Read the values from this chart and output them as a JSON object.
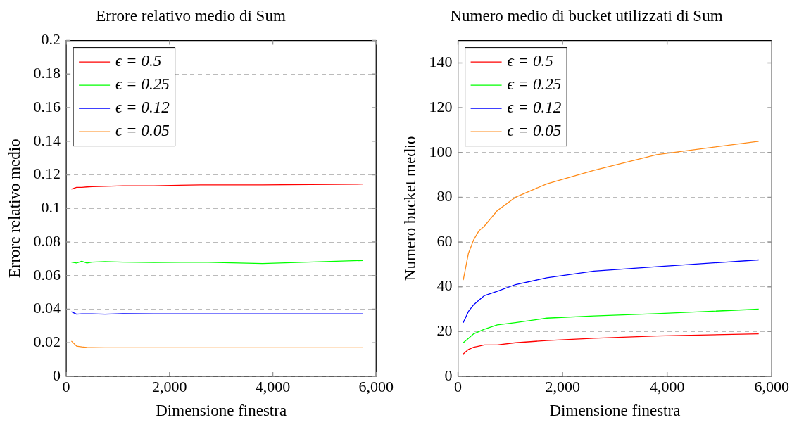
{
  "chart_data": [
    {
      "type": "line",
      "title": "Errore relativo medio di Sum",
      "xlabel": "Dimensione finestra",
      "ylabel": "Errore relativo medio",
      "x": [
        100,
        200,
        300,
        400,
        500,
        750,
        1100,
        1700,
        2600,
        3800,
        5750
      ],
      "xlim": [
        0,
        6000
      ],
      "xticks": [
        0,
        {
          "value": 2000,
          "label": "2,000"
        },
        {
          "value": 4000,
          "label": "4,000"
        },
        {
          "value": 6000,
          "label": "6,000"
        }
      ],
      "ylim": [
        0,
        0.2
      ],
      "yticks": [
        0,
        0.02,
        0.04,
        0.06,
        0.08,
        0.1,
        0.12,
        0.14,
        0.16,
        0.18,
        0.2
      ],
      "grid": "y",
      "legend": "top left",
      "marker": "none",
      "series": [
        {
          "name": "ϵ = 0.5",
          "color": "#ff0000",
          "values": [
            0.1115,
            0.1125,
            0.1125,
            0.1128,
            0.113,
            0.1132,
            0.1135,
            0.1135,
            0.114,
            0.114,
            0.1145
          ]
        },
        {
          "name": "ϵ = 0.25",
          "color": "#00ff00",
          "values": [
            0.068,
            0.0675,
            0.0685,
            0.0675,
            0.068,
            0.0683,
            0.068,
            0.0678,
            0.068,
            0.0672,
            0.069
          ]
        },
        {
          "name": "ϵ = 0.12",
          "color": "#0000ff",
          "values": [
            0.0385,
            0.037,
            0.0372,
            0.0372,
            0.0372,
            0.037,
            0.0373,
            0.0372,
            0.0372,
            0.0372,
            0.0372
          ]
        },
        {
          "name": "ϵ = 0.05",
          "color": "#ff8c1a",
          "values": [
            0.021,
            0.018,
            0.0175,
            0.0172,
            0.0171,
            0.017,
            0.017,
            0.017,
            0.017,
            0.017,
            0.017
          ]
        }
      ]
    },
    {
      "type": "line",
      "title": "Numero medio di bucket utilizzati di Sum",
      "xlabel": "Dimensione finestra",
      "ylabel": "Numero bucket medio",
      "x": [
        100,
        200,
        300,
        400,
        500,
        750,
        1100,
        1700,
        2600,
        3800,
        5750
      ],
      "xlim": [
        0,
        6000
      ],
      "xticks": [
        0,
        {
          "value": 2000,
          "label": "2,000"
        },
        {
          "value": 4000,
          "label": "4,000"
        },
        {
          "value": 6000,
          "label": "6,000"
        }
      ],
      "ylim": [
        0,
        150
      ],
      "yticks": [
        0,
        20,
        40,
        60,
        80,
        100,
        120,
        140
      ],
      "grid": "y",
      "legend": "top left",
      "marker": "none",
      "series": [
        {
          "name": "ϵ = 0.5",
          "color": "#ff0000",
          "values": [
            10,
            12,
            13,
            13.5,
            14,
            14,
            15,
            16,
            17,
            18,
            19
          ]
        },
        {
          "name": "ϵ = 0.25",
          "color": "#00ff00",
          "values": [
            15,
            17,
            19,
            20,
            21,
            23,
            24,
            26,
            27,
            28,
            30
          ]
        },
        {
          "name": "ϵ = 0.12",
          "color": "#0000ff",
          "values": [
            24,
            29,
            32,
            34,
            36,
            38,
            41,
            44,
            47,
            49,
            52
          ]
        },
        {
          "name": "ϵ = 0.05",
          "color": "#ff8c1a",
          "values": [
            43,
            55,
            61,
            65,
            67,
            74,
            80,
            86,
            92,
            99,
            105
          ]
        }
      ]
    }
  ]
}
